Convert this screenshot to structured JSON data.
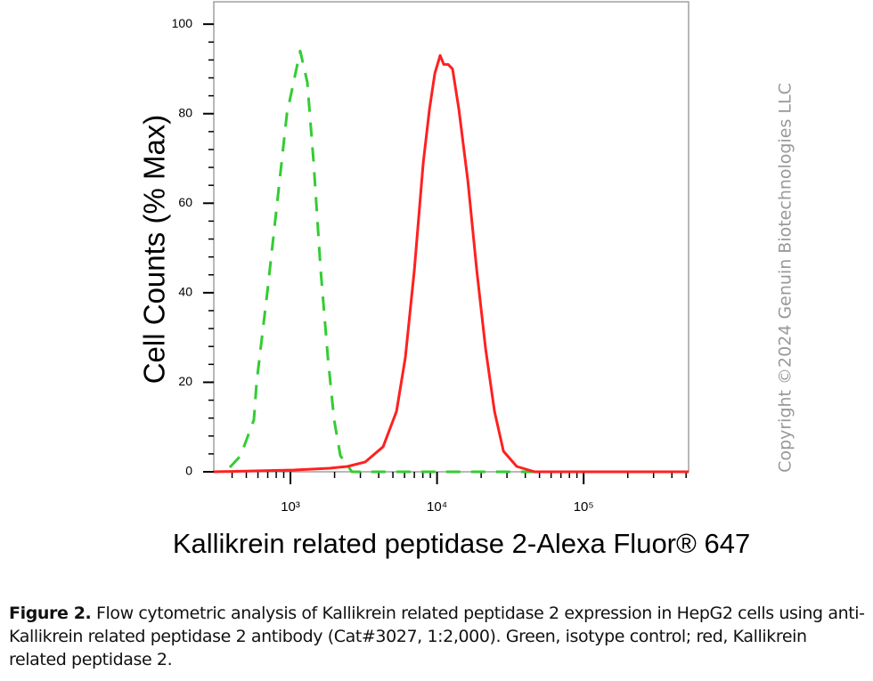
{
  "chart_data": {
    "type": "line",
    "ylabel": "Cell Counts (% Max)",
    "xlabel": "Kallikrein related peptidase 2-Alexa Fluor® 647",
    "watermark": "Copyright ©2024 Genuin Biotechnologies LLC",
    "xscale": "log",
    "xlim": [
      300,
      520000
    ],
    "ylim": [
      0,
      105
    ],
    "xticks": [
      {
        "value": 1000,
        "label": "10³"
      },
      {
        "value": 10000,
        "label": "10⁴"
      },
      {
        "value": 100000,
        "label": "10⁵"
      }
    ],
    "xminorticks": [
      400,
      500,
      600,
      700,
      800,
      900,
      2000,
      3000,
      4000,
      5000,
      6000,
      7000,
      8000,
      9000,
      20000,
      30000,
      40000,
      50000,
      60000,
      70000,
      80000,
      90000,
      200000,
      300000,
      400000,
      500000
    ],
    "yticks": [
      0,
      20,
      40,
      60,
      80,
      100
    ],
    "yminorticks": [
      4,
      8,
      12,
      16,
      24,
      28,
      32,
      36,
      44,
      48,
      52,
      56,
      64,
      68,
      72,
      76,
      84,
      88,
      92,
      96
    ],
    "series": [
      {
        "color": "#33cc33",
        "dashed": true,
        "x": [
          386,
          457,
          563,
          588,
          695,
          811,
          946,
          1166,
          1304,
          1439,
          1609,
          1800,
          1986,
          2190,
          2627,
          520000
        ],
        "values": [
          1,
          3.6,
          11.6,
          20,
          40,
          60,
          80,
          94,
          87,
          69,
          45,
          25.5,
          11.6,
          3.6,
          0,
          0
        ]
      },
      {
        "color": "#ff2020",
        "dashed": false,
        "x": [
          300,
          1057,
          1850,
          2448,
          3240,
          4290,
          5290,
          6080,
          7000,
          8050,
          8880,
          9660,
          10500,
          11120,
          11910,
          12760,
          14080,
          16220,
          18660,
          21440,
          24660,
          28380,
          34990,
          46330,
          520000
        ],
        "values": [
          0,
          0.4,
          0.8,
          1.2,
          2.2,
          5.6,
          13.5,
          25.5,
          45,
          69,
          81,
          89,
          93,
          91,
          91,
          90,
          81,
          65,
          45,
          27.5,
          13.5,
          4.6,
          1.2,
          0,
          0
        ]
      }
    ]
  },
  "caption": {
    "label": "Figure 2.",
    "text": " Flow cytometric analysis of Kallikrein related peptidase 2 expression in HepG2 cells using anti-Kallikrein related peptidase 2 antibody (Cat#3027, 1:2,000). Green, isotype control; red, Kallikrein related peptidase 2."
  }
}
